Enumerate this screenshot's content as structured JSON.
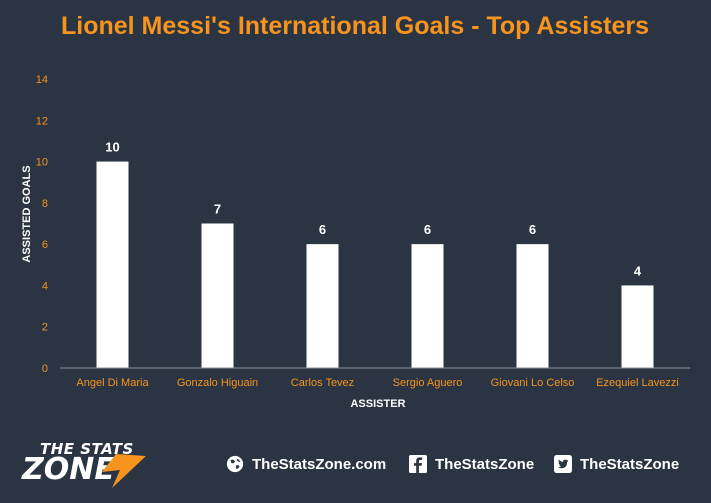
{
  "chart_data": {
    "type": "bar",
    "title": "Lionel Messi's International Goals - Top Assisters",
    "xlabel": "ASSISTER",
    "ylabel": "ASSISTED GOALS",
    "categories": [
      "Angel Di Maria",
      "Gonzalo Higuain",
      "Carlos Tevez",
      "Sergio Aguero",
      "Giovani Lo Celso",
      "Ezequiel Lavezzi"
    ],
    "values": [
      10,
      7,
      6,
      6,
      6,
      4
    ],
    "data_labels": [
      "10",
      "7",
      "6",
      "6",
      "6",
      "4"
    ],
    "ylim": [
      0,
      14
    ],
    "yticks": [
      "0",
      "2",
      "4",
      "6",
      "8",
      "10",
      "12",
      "14"
    ],
    "grid": false,
    "legend": "none",
    "colors": {
      "bar": "#ffffff",
      "title": "#f7941d",
      "tick_label": "#f7941d",
      "axis_label": "#ffffff",
      "data_label": "#ffffff",
      "axis_line": "#8a909a",
      "background": "#2b3443"
    }
  },
  "footer": {
    "logo": {
      "line1": "THE STATS",
      "line2": "ZONE"
    },
    "website": "TheStatsZone.com",
    "facebook": "TheStatsZone",
    "twitter": "TheStatsZone",
    "icons": [
      "globe-icon",
      "facebook-icon",
      "twitter-icon"
    ]
  }
}
